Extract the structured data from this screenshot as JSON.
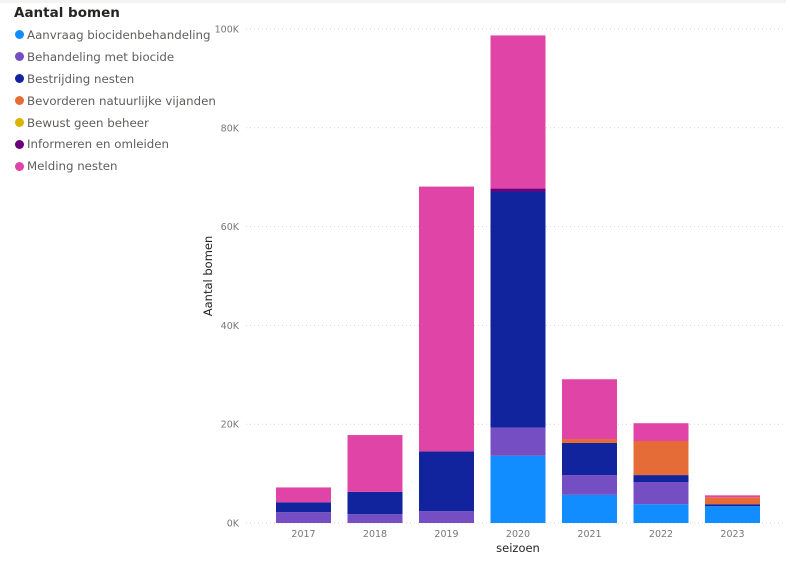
{
  "chart_data": {
    "type": "bar",
    "stacked": true,
    "title": "",
    "legend_title": "Aantal bomen",
    "legend_position": "top-left",
    "xlabel": "seizoen",
    "ylabel": "Aantal bomen",
    "ylim": [
      0,
      100000
    ],
    "grid": true,
    "yticks": [
      0,
      20000,
      40000,
      60000,
      80000,
      100000
    ],
    "ytick_labels": [
      "0K",
      "20K",
      "40K",
      "60K",
      "80K",
      "100K"
    ],
    "categories": [
      "2017",
      "2018",
      "2019",
      "2020",
      "2021",
      "2022",
      "2023"
    ],
    "series": [
      {
        "name": "Aanvraag biocidenbehandeling",
        "color": "#118DFF",
        "values": [
          0,
          0,
          0,
          13600,
          5700,
          3800,
          3400
        ]
      },
      {
        "name": "Behandeling met biocide",
        "color": "#744EC2",
        "values": [
          2200,
          1800,
          2400,
          5700,
          4000,
          4500,
          0
        ]
      },
      {
        "name": "Bestrijding nesten",
        "color": "#12239E",
        "values": [
          2000,
          4500,
          12100,
          47800,
          6500,
          1400,
          400
        ]
      },
      {
        "name": "Bevorderen natuurlijke vijanden",
        "color": "#E66C37",
        "values": [
          0,
          0,
          0,
          0,
          800,
          6900,
          1400
        ]
      },
      {
        "name": "Bewust geen beheer",
        "color": "#D9B300",
        "values": [
          0,
          0,
          0,
          0,
          0,
          0,
          0
        ]
      },
      {
        "name": "Informeren en omleiden",
        "color": "#6B007B",
        "values": [
          0,
          0,
          0,
          600,
          0,
          0,
          0
        ]
      },
      {
        "name": "Melding nesten",
        "color": "#E044A7",
        "values": [
          3000,
          11500,
          53600,
          31000,
          12100,
          3600,
          400
        ]
      }
    ]
  }
}
